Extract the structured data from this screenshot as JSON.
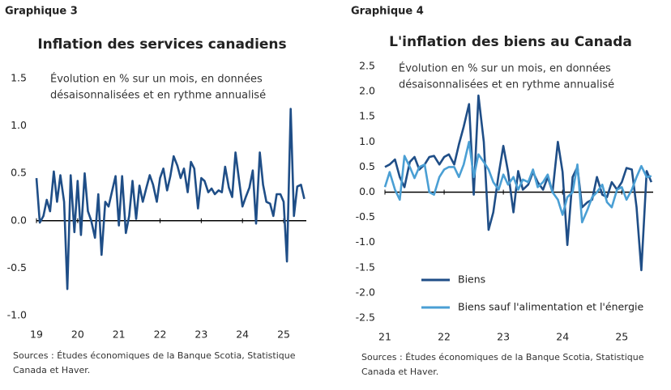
{
  "chart_data": [
    {
      "type": "line",
      "label": "Graphique 3",
      "title": "Inflation des services canadiens",
      "subtitle": [
        "Évolution en % sur un mois, en données",
        "désaisonnalisées et en rythme annualisé"
      ],
      "source": [
        "Sources : Études économiques de la Banque Scotia, Statistique",
        "Canada et Haver."
      ],
      "color": "#1f4e87",
      "x": [
        19,
        19.08,
        19.17,
        19.25,
        19.33,
        19.42,
        19.5,
        19.58,
        19.67,
        19.75,
        19.83,
        19.92,
        20,
        20.08,
        20.17,
        20.25,
        20.33,
        20.42,
        20.5,
        20.58,
        20.67,
        20.75,
        20.83,
        20.92,
        21,
        21.08,
        21.17,
        21.25,
        21.33,
        21.42,
        21.5,
        21.58,
        21.67,
        21.75,
        21.83,
        21.92,
        22,
        22.08,
        22.17,
        22.25,
        22.33,
        22.42,
        22.5,
        22.58,
        22.67,
        22.75,
        22.83,
        22.92,
        23,
        23.08,
        23.17,
        23.25,
        23.33,
        23.42,
        23.5,
        23.58,
        23.67,
        23.75,
        23.83,
        23.92,
        24,
        24.08,
        24.17,
        24.25,
        24.33,
        24.42,
        24.5,
        24.58,
        24.67,
        24.75,
        24.83,
        24.92,
        25,
        25.08,
        25.17,
        25.25,
        25.33,
        25.42,
        25.5
      ],
      "values": [
        0.45,
        -0.02,
        0.05,
        0.22,
        0.1,
        0.52,
        0.2,
        0.48,
        0.2,
        -0.72,
        0.48,
        -0.12,
        0.42,
        -0.15,
        0.5,
        0.1,
        0.0,
        -0.18,
        0.28,
        -0.36,
        0.2,
        0.15,
        0.3,
        0.47,
        -0.05,
        0.47,
        -0.13,
        0.05,
        0.42,
        0.02,
        0.37,
        0.2,
        0.35,
        0.48,
        0.38,
        0.2,
        0.45,
        0.55,
        0.32,
        0.47,
        0.68,
        0.58,
        0.45,
        0.55,
        0.3,
        0.62,
        0.55,
        0.13,
        0.45,
        0.42,
        0.3,
        0.34,
        0.28,
        0.32,
        0.3,
        0.57,
        0.35,
        0.25,
        0.72,
        0.42,
        0.15,
        0.25,
        0.35,
        0.53,
        -0.03,
        0.72,
        0.38,
        0.2,
        0.18,
        0.05,
        0.28,
        0.28,
        0.2,
        -0.43,
        1.18,
        0.05,
        0.36,
        0.38,
        0.23
      ],
      "xlim": [
        19,
        25.55
      ],
      "xticks": [
        19,
        20,
        21,
        22,
        23,
        24,
        25
      ],
      "ylim": [
        -1,
        1.5
      ],
      "yticks": [
        {
          "value": -1,
          "label": "-1.0"
        },
        -0.5,
        {
          "value": 0,
          "label": "0.0"
        },
        0.5,
        {
          "value": 1,
          "label": "1.0"
        },
        1.5
      ]
    },
    {
      "type": "line",
      "label": "Graphique 4",
      "title": "L'inflation des biens au Canada",
      "subtitle": [
        "Évolution en % sur un mois, en données",
        "désaisonnalisées et en rythme annualisé"
      ],
      "source": [
        "Sources : Études économiques de la Banque Scotia, Statistique",
        "Canada et Haver."
      ],
      "x": [
        21,
        21.08,
        21.17,
        21.25,
        21.33,
        21.42,
        21.5,
        21.58,
        21.67,
        21.75,
        21.83,
        21.92,
        22,
        22.08,
        22.17,
        22.25,
        22.33,
        22.42,
        22.5,
        22.58,
        22.67,
        22.75,
        22.83,
        22.92,
        23,
        23.08,
        23.17,
        23.25,
        23.33,
        23.42,
        23.5,
        23.58,
        23.67,
        23.75,
        23.83,
        23.92,
        24,
        24.08,
        24.17,
        24.25,
        24.33,
        24.42,
        24.5,
        24.58,
        24.67,
        24.75,
        24.83,
        24.92,
        25,
        25.08,
        25.17,
        25.25,
        25.33,
        25.42,
        25.5
      ],
      "series": [
        {
          "name": "Biens",
          "color": "#1f4e87",
          "values": [
            0.5,
            0.55,
            0.65,
            0.3,
            0.1,
            0.6,
            0.7,
            0.45,
            0.55,
            0.7,
            0.72,
            0.55,
            0.7,
            0.75,
            0.55,
            0.95,
            1.3,
            1.75,
            -0.05,
            1.92,
            1.0,
            -0.75,
            -0.4,
            0.35,
            0.92,
            0.4,
            -0.4,
            0.42,
            0.05,
            0.15,
            0.4,
            0.2,
            0.05,
            0.3,
            0.0,
            1.0,
            0.4,
            -1.05,
            0.3,
            0.5,
            -0.3,
            -0.2,
            -0.15,
            0.3,
            -0.05,
            -0.1,
            0.2,
            0.05,
            0.2,
            0.48,
            0.45,
            -0.3,
            -1.55,
            0.42,
            0.2
          ]
        },
        {
          "name": "Biens sauf l'alimentation et l'énergie",
          "color": "#4a9fd4",
          "values": [
            0.1,
            0.4,
            0.05,
            -0.15,
            0.72,
            0.5,
            0.28,
            0.5,
            0.55,
            0.0,
            -0.05,
            0.3,
            0.45,
            0.5,
            0.5,
            0.3,
            0.55,
            1.0,
            0.3,
            0.75,
            0.6,
            0.45,
            0.2,
            0.05,
            0.35,
            0.15,
            0.3,
            0.05,
            0.25,
            0.2,
            0.45,
            0.1,
            0.2,
            0.35,
            0.0,
            -0.15,
            -0.45,
            -0.1,
            0.0,
            0.55,
            -0.6,
            -0.35,
            -0.1,
            0.0,
            0.15,
            -0.2,
            -0.3,
            0.05,
            0.1,
            -0.15,
            0.05,
            0.3,
            0.52,
            0.3,
            0.32
          ]
        }
      ],
      "xlim": [
        21,
        25.53
      ],
      "xticks": [
        21,
        22,
        23,
        24,
        25
      ],
      "ylim": [
        -2.5,
        2.5
      ],
      "yticks": [
        -2.5,
        {
          "value": -2,
          "label": "-2.0"
        },
        -1.5,
        {
          "value": -1,
          "label": "-1.0"
        },
        -0.5,
        {
          "value": 0,
          "label": "0.0"
        },
        0.5,
        {
          "value": 1,
          "label": "1.0"
        },
        1.5,
        {
          "value": 2,
          "label": "2.0"
        },
        2.5
      ],
      "legend": "lower left"
    }
  ]
}
